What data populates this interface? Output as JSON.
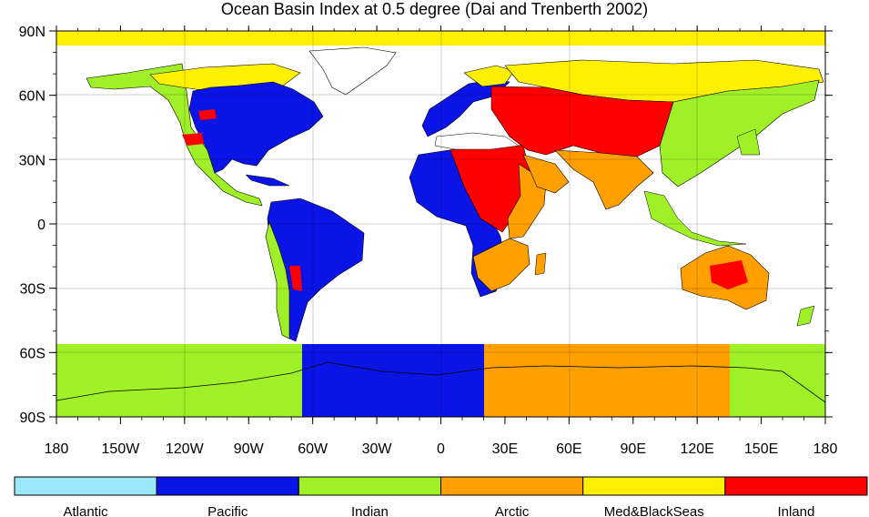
{
  "title": "Ocean Basin Index at 0.5 degree (Dai and Trenberth 2002)",
  "lat_labels": [
    "90N",
    "60N",
    "30N",
    "0",
    "30S",
    "60S",
    "90S"
  ],
  "lon_labels": [
    "180",
    "150W",
    "120W",
    "90W",
    "60W",
    "30W",
    "0",
    "30E",
    "60E",
    "90E",
    "120E",
    "150E",
    "180"
  ],
  "legend": [
    {
      "label": "Atlantic",
      "color": "#9be8fa"
    },
    {
      "label": "Pacific",
      "color": "#0a14e6"
    },
    {
      "label": "Indian",
      "color": "#a0f028"
    },
    {
      "label": "Arctic",
      "color": "#ffa000"
    },
    {
      "label": "Med&BlackSeas",
      "color": "#fff000"
    },
    {
      "label": "Inland",
      "color": "#ff0000"
    }
  ]
}
